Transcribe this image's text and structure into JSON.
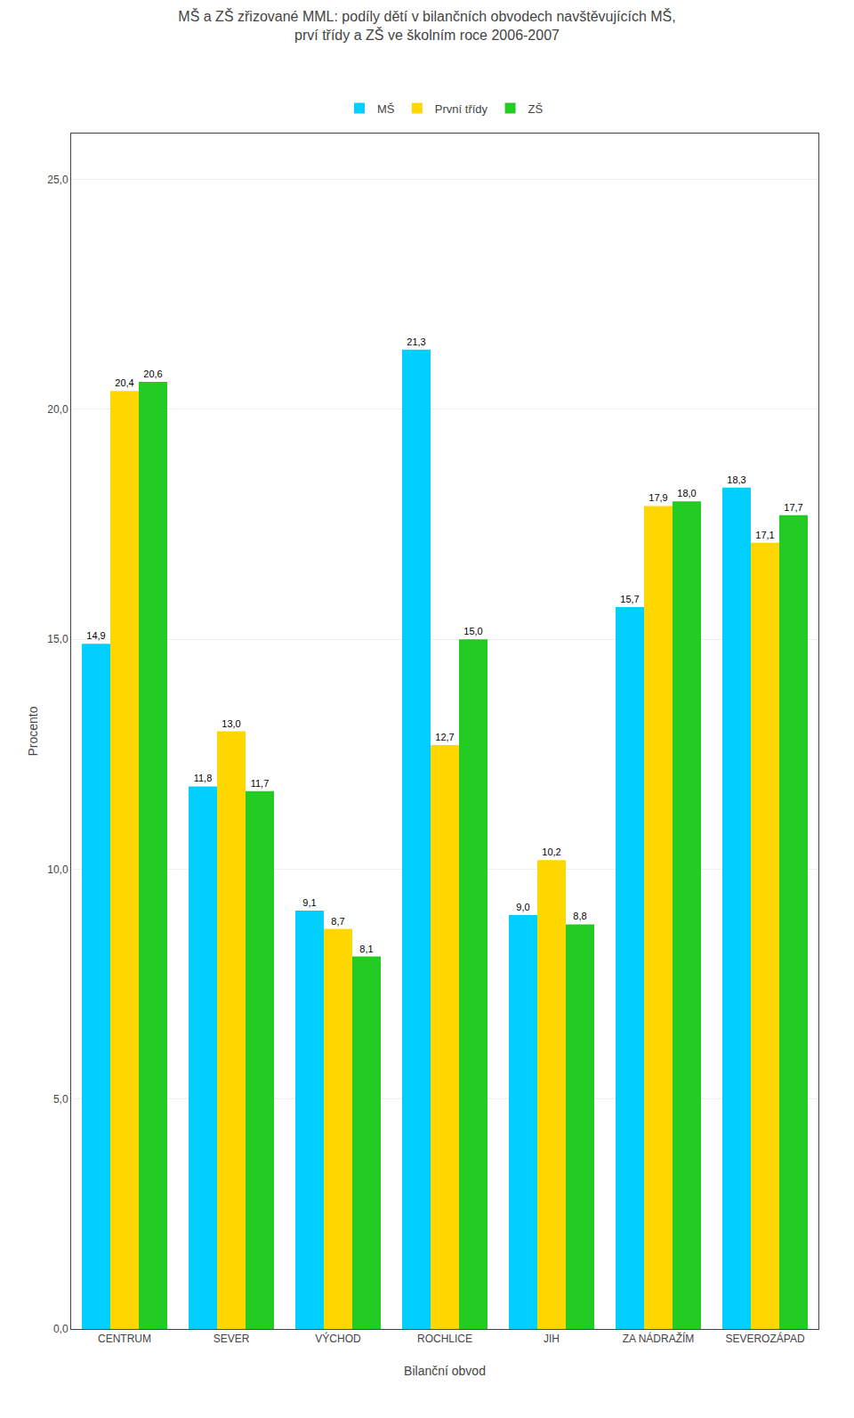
{
  "chart_data": {
    "type": "bar",
    "title": "MŠ a ZŠ zřizované MML: podíly dětí v bilančních obvodech navštěvujících MŠ,\nprví třídy a ZŠ ve školním roce 2006-2007",
    "xlabel": "Bilanční obvod",
    "ylabel": "Procento",
    "categories": [
      "CENTRUM",
      "SEVER",
      "VÝCHOD",
      "ROCHLICE",
      "JIH",
      "ZA NÁDRAŽÍM",
      "SEVEROZÁPAD"
    ],
    "series": [
      {
        "name": "MŠ",
        "color": "#00CFFF",
        "values": [
          14.9,
          11.8,
          9.1,
          21.3,
          9.0,
          15.7,
          18.3
        ],
        "value_labels": [
          "14,9",
          "11,8",
          "9,1",
          "21,3",
          "9,0",
          "15,7",
          "18,3"
        ]
      },
      {
        "name": "První třídy",
        "color": "#FFD700",
        "values": [
          20.4,
          13.0,
          8.7,
          12.7,
          10.2,
          17.9,
          17.1
        ],
        "value_labels": [
          "20,4",
          "13,0",
          "8,7",
          "12,7",
          "10,2",
          "17,9",
          "17,1"
        ]
      },
      {
        "name": "ZŠ",
        "color": "#22CC22",
        "values": [
          20.6,
          11.7,
          8.1,
          15.0,
          8.8,
          18.0,
          17.7
        ],
        "value_labels": [
          "20,6",
          "11,7",
          "8,1",
          "15,0",
          "8,8",
          "18,0",
          "17,7"
        ]
      }
    ],
    "ylim": [
      0,
      26
    ],
    "yticks": [
      {
        "value": 0,
        "label": "0,0"
      },
      {
        "value": 5,
        "label": "5,0"
      },
      {
        "value": 10,
        "label": "10,0"
      },
      {
        "value": 15,
        "label": "15,0"
      },
      {
        "value": 20,
        "label": "20,0"
      },
      {
        "value": 25,
        "label": "25,0"
      }
    ],
    "grid": true,
    "legend": "upper center",
    "data_labels": true
  }
}
